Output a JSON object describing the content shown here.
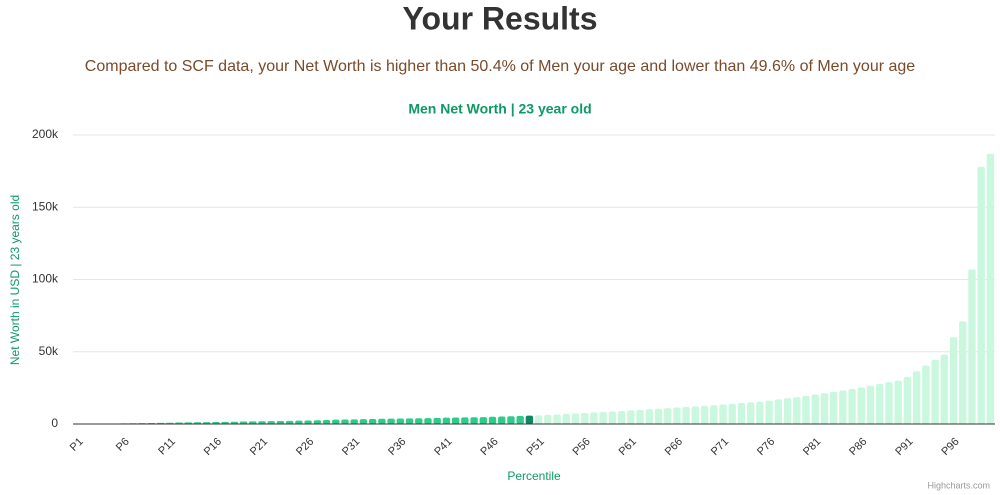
{
  "page": {
    "title": "Your Results",
    "summary": "Compared to SCF data, your Net Worth is higher than 50.4% of Men your age and lower than 49.6% of Men your age"
  },
  "chart_data": {
    "type": "bar",
    "title": "Men Net Worth | 23 year old",
    "y_label": "Net Worth in USD | 23 years old",
    "x_label": "Percentile",
    "credits": "Highcharts.com",
    "categories": [
      "P1",
      null,
      null,
      null,
      null,
      "P6",
      null,
      null,
      null,
      null,
      "P11",
      null,
      null,
      null,
      null,
      "P16",
      null,
      null,
      null,
      null,
      "P21",
      null,
      null,
      null,
      null,
      "P26",
      null,
      null,
      null,
      null,
      "P31",
      null,
      null,
      null,
      null,
      "P36",
      null,
      null,
      null,
      null,
      "P41",
      null,
      null,
      null,
      null,
      "P46",
      null,
      null,
      null,
      null,
      "P51",
      null,
      null,
      null,
      null,
      "P56",
      null,
      null,
      null,
      null,
      "P61",
      null,
      null,
      null,
      null,
      "P66",
      null,
      null,
      null,
      null,
      "P71",
      null,
      null,
      null,
      null,
      "P76",
      null,
      null,
      null,
      null,
      "P81",
      null,
      null,
      null,
      null,
      "P86",
      null,
      null,
      null,
      null,
      "P91",
      null,
      null,
      null,
      null,
      "P96",
      null,
      null,
      null,
      null
    ],
    "values": [
      0,
      0,
      0,
      0,
      200,
      400,
      500,
      600,
      700,
      800,
      900,
      1000,
      1100,
      1200,
      1300,
      1400,
      1500,
      1600,
      1700,
      1800,
      1900,
      2000,
      2100,
      2200,
      2300,
      2400,
      2600,
      2800,
      3000,
      3100,
      3200,
      3400,
      3500,
      3600,
      3700,
      3800,
      3900,
      4000,
      4100,
      4200,
      4400,
      4500,
      4600,
      4700,
      4800,
      5000,
      5200,
      5400,
      5600,
      5800,
      6000,
      6300,
      6600,
      7000,
      7300,
      7600,
      8000,
      8300,
      8700,
      9000,
      9400,
      9800,
      10200,
      10600,
      11000,
      11400,
      11800,
      12200,
      12600,
      13000,
      13500,
      14000,
      14500,
      15000,
      15500,
      16200,
      17000,
      17800,
      18600,
      19500,
      20400,
      21300,
      22200,
      23200,
      24200,
      25300,
      26500,
      27800,
      29000,
      30000,
      32500,
      36500,
      40500,
      44500,
      48000,
      60000,
      71000,
      107000,
      178000,
      187000
    ],
    "colors": [
      "#2ecc8b",
      "#2ecc8b",
      "#2ecc8b",
      "#2ecc8b",
      "#2ecc8b",
      "#2ecc8b",
      "#2ecc8b",
      "#2ecc8b",
      "#2ecc8b",
      "#2ecc8b",
      "#2ecc8b",
      "#2ecc8b",
      "#2ecc8b",
      "#2ecc8b",
      "#2ecc8b",
      "#2ecc8b",
      "#2ecc8b",
      "#2ecc8b",
      "#2ecc8b",
      "#2ecc8b",
      "#2ecc8b",
      "#2ecc8b",
      "#2ecc8b",
      "#2ecc8b",
      "#2ecc8b",
      "#2ecc8b",
      "#2ecc8b",
      "#2ecc8b",
      "#2ecc8b",
      "#2ecc8b",
      "#2ecc8b",
      "#2ecc8b",
      "#2ecc8b",
      "#2ecc8b",
      "#2ecc8b",
      "#2ecc8b",
      "#2ecc8b",
      "#2ecc8b",
      "#2ecc8b",
      "#2ecc8b",
      "#2ecc8b",
      "#2ecc8b",
      "#2ecc8b",
      "#2ecc8b",
      "#2ecc8b",
      "#2ecc8b",
      "#2ecc8b",
      "#2ecc8b",
      "#2ecc8b",
      "#0c8a5f",
      "#c9f8df",
      "#c9f8df",
      "#c9f8df",
      "#c9f8df",
      "#c9f8df",
      "#c9f8df",
      "#c9f8df",
      "#c9f8df",
      "#c9f8df",
      "#c9f8df",
      "#c9f8df",
      "#c9f8df",
      "#c9f8df",
      "#c9f8df",
      "#c9f8df",
      "#c9f8df",
      "#c9f8df",
      "#c9f8df",
      "#c9f8df",
      "#c9f8df",
      "#c9f8df",
      "#c9f8df",
      "#c9f8df",
      "#c9f8df",
      "#c9f8df",
      "#c9f8df",
      "#c9f8df",
      "#c9f8df",
      "#c9f8df",
      "#c9f8df",
      "#c9f8df",
      "#c9f8df",
      "#c9f8df",
      "#c9f8df",
      "#c9f8df",
      "#c9f8df",
      "#c9f8df",
      "#c9f8df",
      "#c9f8df",
      "#c9f8df",
      "#c9f8df",
      "#c9f8df",
      "#c9f8df",
      "#c9f8df",
      "#c9f8df",
      "#c9f8df",
      "#c9f8df",
      "#c9f8df",
      "#c9f8df",
      "#c9f8df"
    ],
    "ylim": [
      0,
      200000
    ],
    "yticks": [
      0,
      {
        "value": 50000,
        "label": "50k"
      },
      {
        "value": 100000,
        "label": "100k"
      },
      {
        "value": 150000,
        "label": "150k"
      },
      {
        "value": 200000,
        "label": "200k"
      }
    ],
    "grid": true
  }
}
